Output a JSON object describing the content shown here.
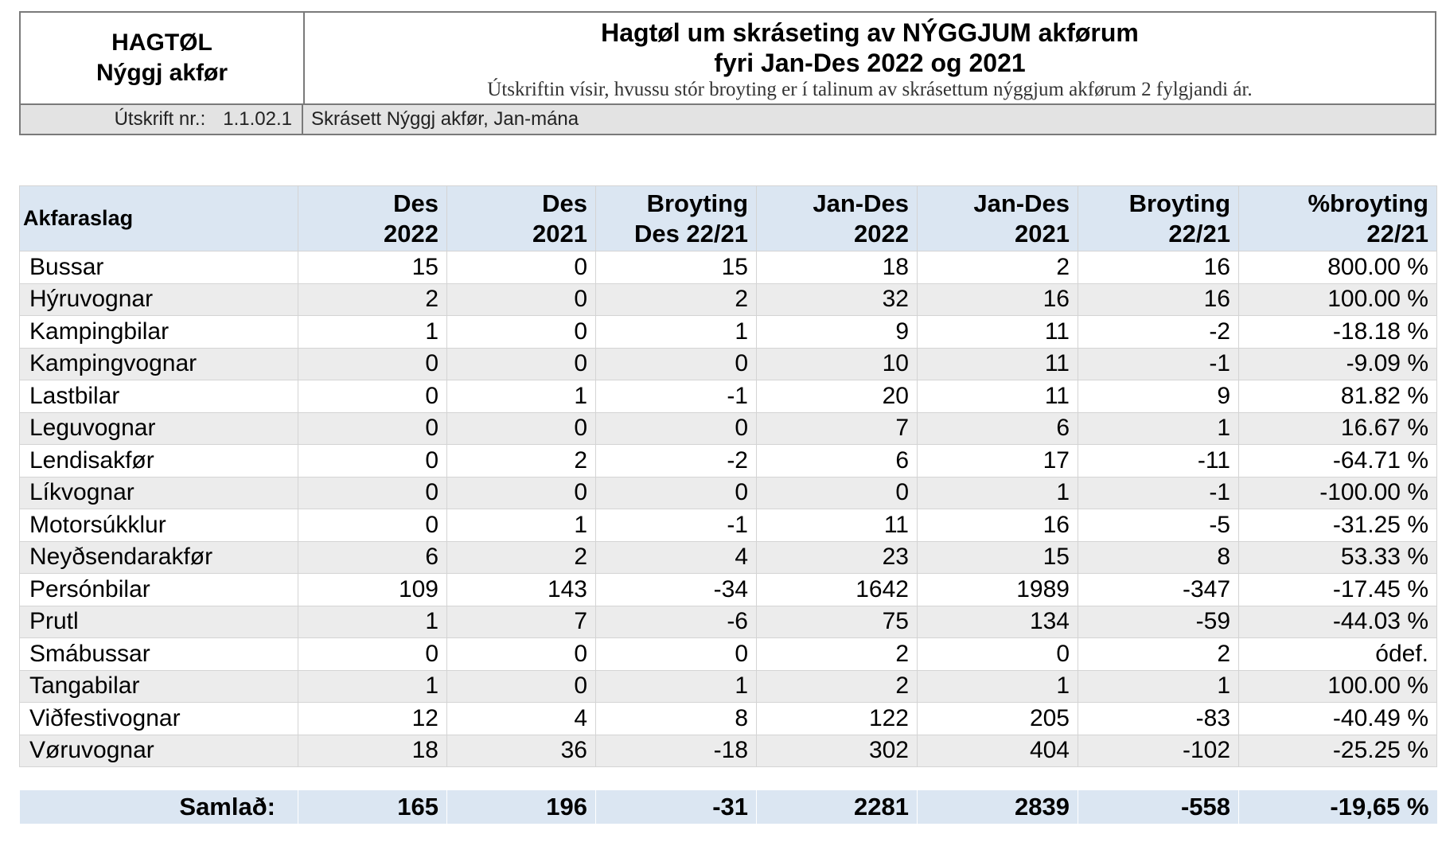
{
  "header": {
    "left_line1": "HAGTØL",
    "left_line2": "Nýggj akfør",
    "title_line1": "Hagtøl um skráseting av NÝGGJUM akførum",
    "title_line2": "fyri Jan-Des 2022 og 2021",
    "subtitle": "Útskriftin vísir, hvussu stór broyting er í talinum av skrásettum nýggjum akførum 2 fylgjandi ár.",
    "print_label": "Útskrift nr.:",
    "print_number": "1.1.02.1",
    "print_description": "Skrásett Nýggj akfør, Jan-mána"
  },
  "table": {
    "columns": [
      {
        "line1": "Akfaraslag",
        "line2": ""
      },
      {
        "line1": "Des",
        "line2": "2022"
      },
      {
        "line1": "Des",
        "line2": "2021"
      },
      {
        "line1": "Broyting",
        "line2": "Des 22/21"
      },
      {
        "line1": "Jan-Des",
        "line2": "2022"
      },
      {
        "line1": "Jan-Des",
        "line2": "2021"
      },
      {
        "line1": "Broyting",
        "line2": "22/21"
      },
      {
        "line1": "%broyting",
        "line2": "22/21"
      }
    ],
    "rows": [
      [
        "Bussar",
        "15",
        "0",
        "15",
        "18",
        "2",
        "16",
        "800.00 %"
      ],
      [
        "Hýruvognar",
        "2",
        "0",
        "2",
        "32",
        "16",
        "16",
        "100.00 %"
      ],
      [
        "Kampingbilar",
        "1",
        "0",
        "1",
        "9",
        "11",
        "-2",
        "-18.18 %"
      ],
      [
        "Kampingvognar",
        "0",
        "0",
        "0",
        "10",
        "11",
        "-1",
        "-9.09 %"
      ],
      [
        "Lastbilar",
        "0",
        "1",
        "-1",
        "20",
        "11",
        "9",
        "81.82 %"
      ],
      [
        "Leguvognar",
        "0",
        "0",
        "0",
        "7",
        "6",
        "1",
        "16.67 %"
      ],
      [
        "Lendisakfør",
        "0",
        "2",
        "-2",
        "6",
        "17",
        "-11",
        "-64.71 %"
      ],
      [
        "Líkvognar",
        "0",
        "0",
        "0",
        "0",
        "1",
        "-1",
        "-100.00 %"
      ],
      [
        "Motorsúkklur",
        "0",
        "1",
        "-1",
        "11",
        "16",
        "-5",
        "-31.25 %"
      ],
      [
        "Neyðsendarakfør",
        "6",
        "2",
        "4",
        "23",
        "15",
        "8",
        "53.33 %"
      ],
      [
        "Persónbilar",
        "109",
        "143",
        "-34",
        "1642",
        "1989",
        "-347",
        "-17.45 %"
      ],
      [
        "Prutl",
        "1",
        "7",
        "-6",
        "75",
        "134",
        "-59",
        "-44.03 %"
      ],
      [
        "Smábussar",
        "0",
        "0",
        "0",
        "2",
        "0",
        "2",
        "ódef."
      ],
      [
        "Tangabilar",
        "1",
        "0",
        "1",
        "2",
        "1",
        "1",
        "100.00 %"
      ],
      [
        "Viðfestivognar",
        "12",
        "4",
        "8",
        "122",
        "205",
        "-83",
        "-40.49 %"
      ],
      [
        "Vøruvognar",
        "18",
        "36",
        "-18",
        "302",
        "404",
        "-102",
        "-25.25 %"
      ]
    ],
    "total": [
      "Samlað:",
      "165",
      "196",
      "-31",
      "2281",
      "2839",
      "-558",
      "-19,65 %"
    ]
  },
  "colors": {
    "header_blue": "#dbe6f2",
    "row_stripe": "#ececec",
    "print_bar": "#e3e3e3",
    "border": "#7a7a7a"
  }
}
